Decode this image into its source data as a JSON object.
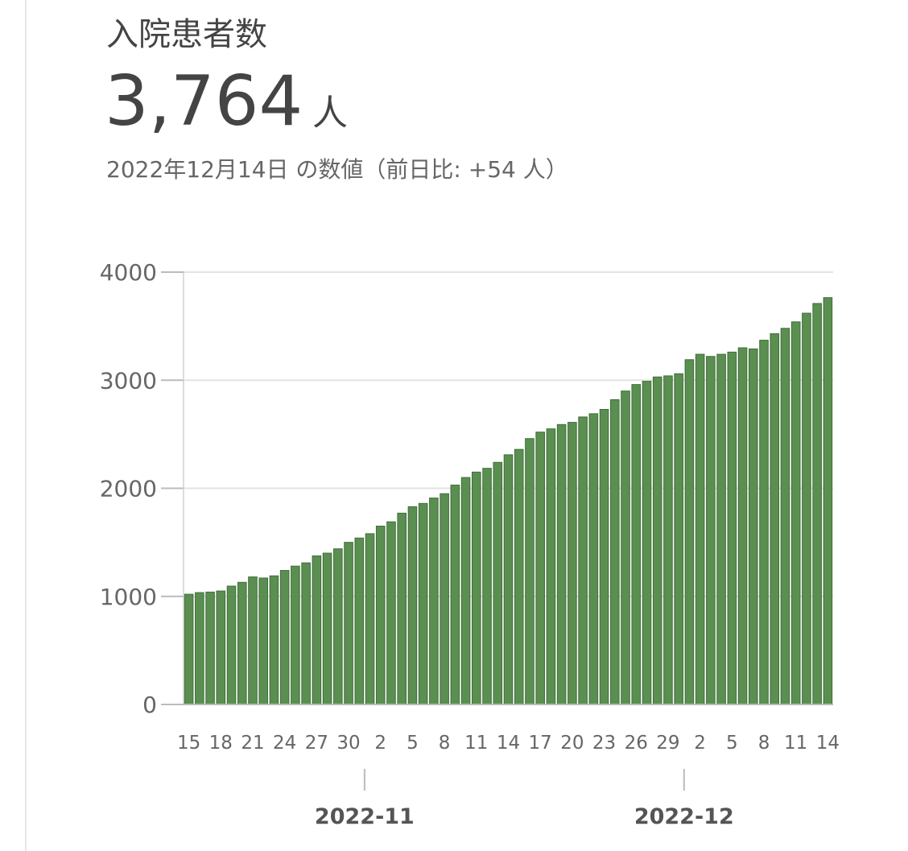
{
  "chart_data": {
    "type": "bar",
    "title": "入院患者数",
    "headline": {
      "value": "3,764",
      "unit": "人"
    },
    "subtitle": "2022年12月14日 の数値（前日比: +54 人）",
    "categories": [
      "15",
      null,
      null,
      "18",
      null,
      null,
      "21",
      null,
      null,
      "24",
      null,
      null,
      "27",
      null,
      null,
      "30",
      null,
      null,
      "2",
      null,
      null,
      "5",
      null,
      null,
      "8",
      null,
      null,
      "11",
      null,
      null,
      "14",
      null,
      null,
      "17",
      null,
      null,
      "20",
      null,
      null,
      "23",
      null,
      null,
      "26",
      null,
      null,
      "29",
      null,
      null,
      "2",
      null,
      null,
      "5",
      null,
      null,
      "8",
      null,
      null,
      "11",
      null,
      null,
      "14"
    ],
    "months": [
      {
        "label": "2022-11",
        "category": 17
      },
      {
        "label": "2022-12",
        "category": 47
      }
    ],
    "values": [
      1020,
      1035,
      1040,
      1050,
      1095,
      1130,
      1180,
      1170,
      1190,
      1240,
      1280,
      1310,
      1375,
      1400,
      1440,
      1500,
      1540,
      1580,
      1650,
      1690,
      1770,
      1830,
      1860,
      1910,
      1950,
      2030,
      2100,
      2150,
      2185,
      2240,
      2310,
      2360,
      2460,
      2520,
      2550,
      2590,
      2610,
      2660,
      2690,
      2730,
      2820,
      2900,
      2960,
      2990,
      3030,
      3040,
      3060,
      3190,
      3240,
      3220,
      3240,
      3260,
      3300,
      3290,
      3370,
      3430,
      3480,
      3540,
      3620,
      3710,
      3764
    ],
    "color": "#5b8f52",
    "ylim": [
      0,
      4000
    ],
    "yticks": [
      0,
      1000,
      2000,
      3000,
      4000
    ],
    "grid": true
  }
}
